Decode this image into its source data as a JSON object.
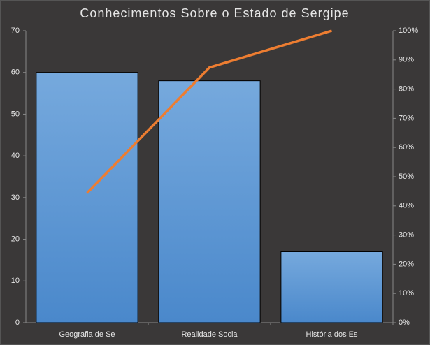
{
  "chart_data": {
    "type": "pareto",
    "title": "Conhecimentos Sobre o Estado de Sergipe",
    "categories": [
      "Geografia de Se",
      "Realidade Socia",
      "História dos Es"
    ],
    "series": [
      {
        "type": "bar",
        "color": "#5b9bd5",
        "values": [
          60,
          58,
          17
        ]
      },
      {
        "type": "line",
        "color": "#ed7d31",
        "axis": "y2",
        "values": [
          44.4,
          87.4,
          100
        ]
      }
    ],
    "ylim": [
      0,
      70
    ],
    "yticks": [
      0,
      10,
      20,
      30,
      40,
      50,
      60,
      70
    ],
    "y2lim": [
      0,
      100
    ],
    "y2ticks": [
      {
        "value": 0,
        "label": "0%"
      },
      {
        "value": 10,
        "label": "10%"
      },
      {
        "value": 20,
        "label": "20%"
      },
      {
        "value": 30,
        "label": "30%"
      },
      {
        "value": 40,
        "label": "40%"
      },
      {
        "value": 50,
        "label": "50%"
      },
      {
        "value": 60,
        "label": "60%"
      },
      {
        "value": 70,
        "label": "70%"
      },
      {
        "value": 80,
        "label": "80%"
      },
      {
        "value": 90,
        "label": "90%"
      },
      {
        "value": 100,
        "label": "100%"
      }
    ]
  }
}
